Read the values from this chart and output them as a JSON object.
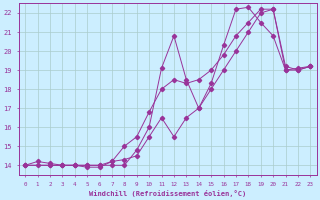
{
  "xlabel": "Windchill (Refroidissement éolien,°C)",
  "bg_color": "#cceeff",
  "grid_color": "#aacccc",
  "line_color": "#993399",
  "xlim": [
    -0.5,
    23.5
  ],
  "ylim": [
    13.5,
    22.5
  ],
  "xticks": [
    0,
    1,
    2,
    3,
    4,
    5,
    6,
    7,
    8,
    9,
    10,
    11,
    12,
    13,
    14,
    15,
    16,
    17,
    18,
    19,
    20,
    21,
    22,
    23
  ],
  "yticks": [
    14,
    15,
    16,
    17,
    18,
    19,
    20,
    21,
    22
  ],
  "line1_x": [
    0,
    1,
    2,
    3,
    4,
    5,
    6,
    7,
    8,
    9,
    10,
    11,
    12,
    13,
    14,
    15,
    16,
    17,
    18,
    19,
    20,
    21,
    22,
    23
  ],
  "line1_y": [
    14,
    14.2,
    14.1,
    14.0,
    14.0,
    13.9,
    13.9,
    14.2,
    14.3,
    14.5,
    15.5,
    16.5,
    15.5,
    16.5,
    17.0,
    18.0,
    19.0,
    20.0,
    21.0,
    22.0,
    22.2,
    19.0,
    19.0,
    19.2
  ],
  "line2_x": [
    0,
    1,
    2,
    3,
    4,
    5,
    6,
    7,
    8,
    9,
    10,
    11,
    12,
    13,
    14,
    15,
    16,
    17,
    18,
    19,
    20,
    21,
    22,
    23
  ],
  "line2_y": [
    14,
    14.0,
    14.0,
    14.0,
    14.0,
    14.0,
    14.0,
    14.0,
    14.0,
    14.8,
    16.0,
    19.1,
    20.8,
    18.5,
    17.0,
    18.3,
    20.3,
    22.2,
    22.3,
    21.5,
    20.8,
    19.0,
    19.1,
    19.2
  ],
  "line3_x": [
    0,
    2,
    3,
    4,
    5,
    6,
    7,
    8,
    9,
    10,
    11,
    12,
    13,
    14,
    15,
    16,
    17,
    18,
    19,
    20,
    21,
    22,
    23
  ],
  "line3_y": [
    14,
    14.0,
    14.0,
    14.0,
    14.0,
    14.0,
    14.2,
    15.0,
    15.5,
    16.8,
    18.0,
    18.5,
    18.3,
    18.5,
    19.0,
    19.8,
    20.8,
    21.5,
    22.2,
    22.2,
    19.2,
    19.0,
    19.2
  ]
}
